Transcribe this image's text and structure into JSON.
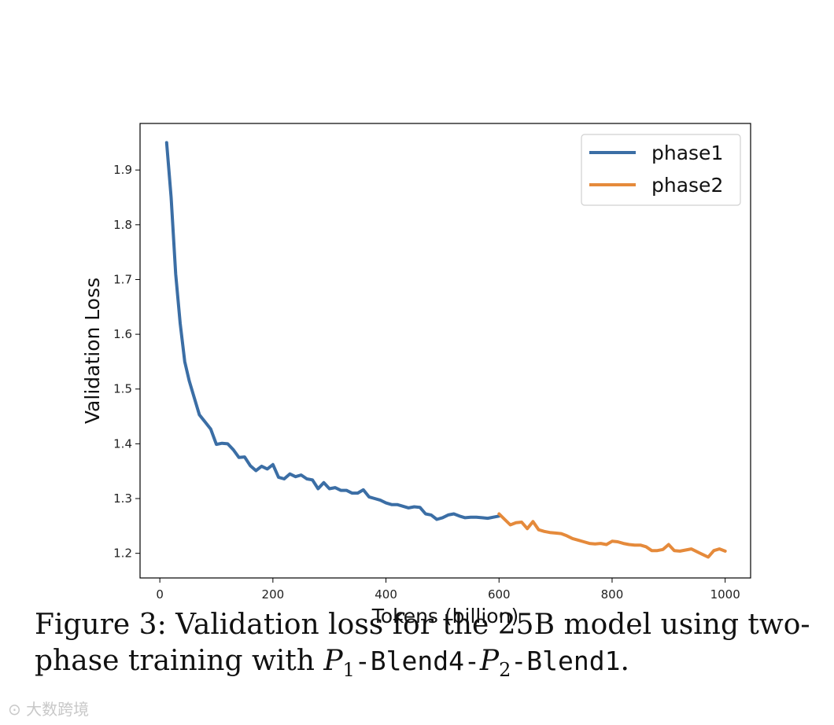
{
  "chart_data": {
    "type": "line",
    "title": "",
    "xlabel": "Tokens (billion)",
    "ylabel": "Validation Loss",
    "xlim": [
      -35,
      1045
    ],
    "ylim": [
      1.155,
      1.985
    ],
    "xticks": [
      0,
      200,
      400,
      600,
      800,
      1000
    ],
    "yticks": [
      1.2,
      1.3,
      1.4,
      1.5,
      1.6,
      1.7,
      1.8,
      1.9
    ],
    "xtick_labels": [
      "0",
      "200",
      "400",
      "600",
      "800",
      "1000"
    ],
    "ytick_labels": [
      "1.2",
      "1.3",
      "1.4",
      "1.5",
      "1.6",
      "1.7",
      "1.8",
      "1.9"
    ],
    "legend_position": "top-right",
    "series": [
      {
        "name": "phase1",
        "color": "#3b6ea5",
        "x": [
          12,
          20,
          28,
          36,
          44,
          52,
          60,
          70,
          80,
          90,
          100,
          110,
          120,
          130,
          140,
          150,
          160,
          170,
          180,
          190,
          200,
          210,
          220,
          230,
          240,
          250,
          260,
          270,
          280,
          290,
          300,
          310,
          320,
          330,
          340,
          350,
          360,
          370,
          380,
          390,
          400,
          410,
          420,
          430,
          440,
          450,
          460,
          470,
          480,
          490,
          500,
          510,
          520,
          530,
          540,
          550,
          560,
          570,
          580,
          590,
          600
        ],
        "y": [
          1.95,
          1.85,
          1.71,
          1.62,
          1.55,
          1.515,
          1.487,
          1.453,
          1.44,
          1.427,
          1.399,
          1.401,
          1.4,
          1.389,
          1.375,
          1.376,
          1.36,
          1.351,
          1.359,
          1.354,
          1.362,
          1.339,
          1.336,
          1.345,
          1.34,
          1.343,
          1.336,
          1.334,
          1.318,
          1.329,
          1.318,
          1.32,
          1.315,
          1.315,
          1.31,
          1.31,
          1.316,
          1.303,
          1.3,
          1.297,
          1.292,
          1.289,
          1.289,
          1.286,
          1.283,
          1.285,
          1.284,
          1.272,
          1.27,
          1.262,
          1.265,
          1.27,
          1.272,
          1.268,
          1.265,
          1.266,
          1.266,
          1.265,
          1.264,
          1.266,
          1.268
        ]
      },
      {
        "name": "phase2",
        "color": "#e58a3b",
        "x": [
          600,
          610,
          620,
          630,
          640,
          650,
          660,
          670,
          680,
          690,
          700,
          710,
          720,
          730,
          740,
          750,
          760,
          770,
          780,
          790,
          800,
          810,
          820,
          830,
          840,
          850,
          860,
          870,
          880,
          890,
          900,
          910,
          920,
          930,
          940,
          950,
          960,
          970,
          980,
          990,
          1000
        ],
        "y": [
          1.272,
          1.262,
          1.252,
          1.256,
          1.257,
          1.245,
          1.258,
          1.243,
          1.24,
          1.238,
          1.237,
          1.236,
          1.232,
          1.227,
          1.224,
          1.221,
          1.218,
          1.217,
          1.218,
          1.216,
          1.222,
          1.221,
          1.218,
          1.216,
          1.215,
          1.215,
          1.212,
          1.205,
          1.205,
          1.207,
          1.216,
          1.205,
          1.204,
          1.206,
          1.208,
          1.203,
          1.198,
          1.193,
          1.205,
          1.208,
          1.204
        ]
      }
    ]
  },
  "caption": {
    "prefix": "Figure 3: Validation loss for the 25B model using two-phase training with ",
    "p1_symbol": "P",
    "p1_sub": "1",
    "sep1": "-",
    "blend4": "Blend4",
    "sep2": "-",
    "p2_symbol": "P",
    "p2_sub": "2",
    "sep3": "-",
    "blend1": "Blend1",
    "suffix": "."
  },
  "watermark": "大数跨境"
}
